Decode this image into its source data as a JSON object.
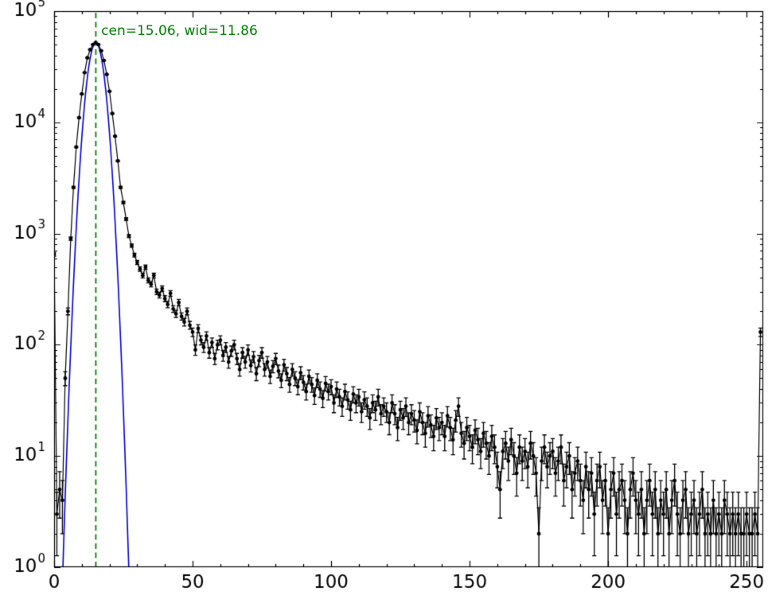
{
  "chart_data": {
    "type": "scatter",
    "title": "",
    "xlabel": "",
    "ylabel": "",
    "xlim": [
      0,
      256
    ],
    "ylim_log10": [
      0,
      5
    ],
    "x_ticks": [
      0,
      50,
      100,
      150,
      200,
      250
    ],
    "x_minor_tick_step": 10,
    "y_tick_base": "10",
    "y_tick_exponents": [
      0,
      1,
      2,
      3,
      4,
      5
    ],
    "grid": false,
    "legend": "none",
    "annotation": {
      "text": "cen=15.06, wid=11.86",
      "color": "#008000",
      "x": 17,
      "y_log10": 4.82
    },
    "series": [
      {
        "name": "histogram-data",
        "style": "errorbar-line-points",
        "color": "#000000",
        "error_model": "sqrt(count)",
        "x_start": 0,
        "x_step": 1,
        "counts": [
          650,
          3,
          5,
          4,
          50,
          200,
          900,
          2600,
          6000,
          11000,
          18000,
          28000,
          38000,
          45000,
          50000,
          52000,
          50000,
          44000,
          36000,
          27000,
          19000,
          12000,
          7500,
          4500,
          2600,
          1900,
          1350,
          950,
          780,
          640,
          550,
          480,
          420,
          500,
          380,
          350,
          420,
          300,
          280,
          320,
          260,
          230,
          290,
          210,
          190,
          240,
          180,
          160,
          200,
          150,
          130,
          90,
          140,
          110,
          95,
          120,
          85,
          105,
          75,
          100,
          110,
          80,
          95,
          70,
          88,
          100,
          75,
          60,
          85,
          70,
          90,
          65,
          78,
          55,
          72,
          85,
          60,
          70,
          52,
          64,
          75,
          58,
          48,
          66,
          55,
          44,
          60,
          50,
          42,
          56,
          46,
          38,
          52,
          44,
          35,
          48,
          40,
          33,
          45,
          38,
          42,
          30,
          40,
          34,
          28,
          38,
          32,
          26,
          36,
          30,
          34,
          25,
          32,
          28,
          22,
          30,
          26,
          34,
          24,
          28,
          25,
          20,
          30,
          24,
          18,
          26,
          22,
          28,
          20,
          24,
          21,
          17,
          25,
          20,
          16,
          23,
          19,
          15,
          22,
          18,
          20,
          15,
          23,
          18,
          14,
          21,
          28,
          16,
          13,
          18,
          15,
          12,
          17,
          14,
          11,
          16,
          13,
          10,
          15,
          12,
          8,
          5,
          11,
          13,
          9,
          14,
          10,
          7,
          12,
          9,
          11,
          8,
          13,
          10,
          7,
          2,
          9,
          12,
          8,
          10,
          11,
          7,
          9,
          12,
          6,
          8,
          10,
          5,
          7,
          9,
          6,
          4,
          8,
          5,
          7,
          3,
          6,
          8,
          4,
          6,
          2,
          5,
          7,
          3,
          5,
          6,
          4,
          2,
          5,
          7,
          4,
          3,
          5,
          2,
          4,
          6,
          3,
          5,
          2,
          4,
          3,
          5,
          2,
          4,
          6,
          3,
          2,
          4,
          5,
          2,
          3,
          4,
          2,
          3,
          5,
          2,
          3,
          2,
          4,
          2,
          3,
          2,
          4,
          3,
          2,
          3,
          2,
          3,
          2,
          2,
          3,
          2,
          2,
          3,
          2,
          130
        ]
      },
      {
        "name": "gaussian-fit",
        "style": "line",
        "color": "#0000dd",
        "center": 15.06,
        "width_label": 11.86,
        "sigma": 2.55,
        "amplitude": 52000
      },
      {
        "name": "center-marker",
        "style": "vline-dashed",
        "color": "#008000",
        "x": 15.06
      }
    ]
  }
}
